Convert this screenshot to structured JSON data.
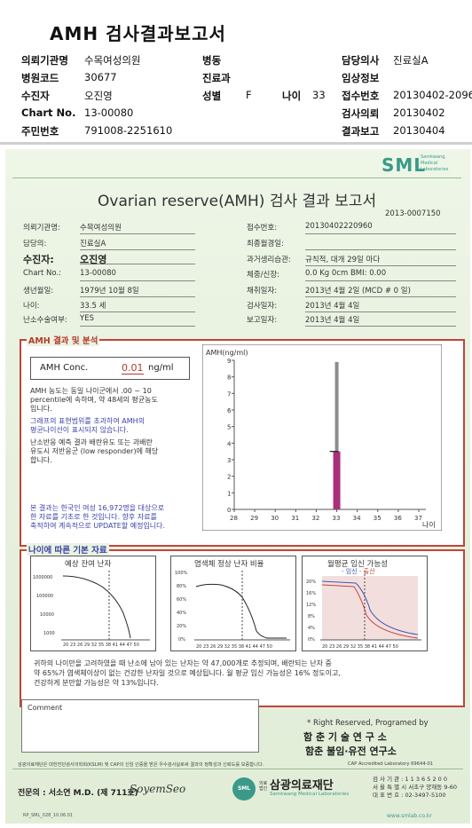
{
  "header": {
    "title": "AMH 검사결과보고서",
    "rows": [
      [
        {
          "k": "의뢰기관명",
          "v": "수목여성의원"
        },
        {
          "k": "병동",
          "v": ""
        },
        {
          "k": "담당의사",
          "v": "진료실A"
        }
      ],
      [
        {
          "k": "병원코드",
          "v": "30677"
        },
        {
          "k": "진료과",
          "v": ""
        },
        {
          "k": "임상정보",
          "v": ""
        }
      ],
      [
        {
          "k": "수진자",
          "v": "오진영"
        },
        {
          "k": "성별",
          "v": "F"
        },
        {
          "k": "나이",
          "v": "33"
        },
        {
          "k": "접수번호",
          "v": "20130402-2096"
        }
      ],
      [
        {
          "k": "Chart No.",
          "v": "13-00080"
        },
        {
          "k": "검사의뢰",
          "v": "20130402"
        }
      ],
      [
        {
          "k": "주민번호",
          "v": "791008-2251610"
        },
        {
          "k": "결과보고",
          "v": "20130404"
        }
      ]
    ]
  },
  "report": {
    "logo": "SML",
    "logo_sub": [
      "Samkwang",
      "Medical",
      "Laboratories"
    ],
    "title": "Ovarian reserve(AMH) 검사 결과 보고서",
    "doc_no": "2013-0007150",
    "left_fields": [
      {
        "k": "의뢰기관명:",
        "v": "수목여성의원"
      },
      {
        "k": "담당의:",
        "v": "진료실A"
      },
      {
        "k": "수진자:",
        "v": "오진영"
      },
      {
        "k": "Chart No.:",
        "v": "13-00080"
      },
      {
        "k": "생년월일:",
        "v": "1979년 10월 8일"
      },
      {
        "k": "나이:",
        "v": "33.5 세"
      },
      {
        "k": "난소수술여부:",
        "v": "YES"
      }
    ],
    "right_fields": [
      {
        "k": "접수번호:",
        "v": "20130402220960"
      },
      {
        "k": "최종월경일:",
        "v": ""
      },
      {
        "k": "과거생리습관:",
        "v": "규칙적, 대개  29일 마다"
      },
      {
        "k": "체중/신장:",
        "v": "0.0 Kg      0cm   BMI:  0.00"
      },
      {
        "k": "채취일자:",
        "v": "2013년 4월 2일   (MCD # 0 일)"
      },
      {
        "k": "검사일자:",
        "v": "2013년 4월 4일"
      },
      {
        "k": "보고일자:",
        "v": "2013년 4월 4일"
      }
    ],
    "amh_section": {
      "heading": "AMH 결과 및 분석",
      "conc_label": "AMH Conc.",
      "conc_value": "0.01",
      "conc_unit": "ng/ml",
      "note1": [
        "AMH 농도는 동일 나이군에서  .00 ~ 10",
        "percentile에 속하며, 약  48세의 평균농도",
        "입니다."
      ],
      "note2": [
        "그래프의 표현범위를 초과하여 AMH의",
        "평균나이선이 표시되지 않습니다."
      ],
      "note3": [
        "난소반응 예측 결과 배란유도 또는 과배란",
        "유도시 저반응군 (low responder)에 해당",
        "합니다."
      ],
      "note4": [
        "본 결과는 한국인 여성 16,972명을 대상으로",
        "한 자료를 기초로 한 것입니다. 향후 자료를",
        "축적하여 계속적으로 UPDATE할 예정입니다."
      ]
    },
    "chart_data": {
      "type": "bar",
      "ylabel": "AMH(ng/ml)",
      "xlabel": "나이",
      "categories": [
        "28",
        "29",
        "30",
        "31",
        "32",
        "33",
        "34",
        "35",
        "36",
        "37"
      ],
      "ylim": [
        0,
        9
      ],
      "yticks": [
        "0",
        "1",
        "2",
        "3",
        "4",
        "5",
        "6",
        "7",
        "8",
        "9"
      ],
      "series": [
        {
          "values": [
            null,
            null,
            null,
            null,
            null,
            8.9,
            null,
            null,
            null,
            null
          ],
          "color": "#8c8c8c"
        },
        {
          "values": [
            null,
            null,
            null,
            null,
            null,
            3.5,
            null,
            null,
            null,
            null
          ],
          "color": "#a8307a"
        }
      ],
      "marker_value": 3.5
    },
    "age_section": {
      "heading": "나이에 따른 기본 자료",
      "mini1": {
        "title": "예상 잔여 난자",
        "yticks": [
          "1000000",
          "100000",
          "10000",
          "1000"
        ],
        "xlabels": "20 23 26 29 32 35 38 41 44 47 50"
      },
      "mini2": {
        "title": "염색체 정상 난자 비율",
        "yticks": [
          "100%",
          "80%",
          "60%",
          "40%",
          "20%",
          "0%"
        ],
        "xlabels": "20 23 26 29 32 35 38 41 44 47 50"
      },
      "mini3": {
        "title": "월평균 임신 가능성",
        "legend_a": "임신",
        "legend_b": "출산",
        "yticks": [
          "20%",
          "16%",
          "12%",
          "8%",
          "4%",
          "0%"
        ],
        "xlabels": "20 23 26 29 32 35 38 41 44 47 50"
      },
      "summary": [
        "귀하의 나이만을 고려하였을 때 난소에 남아 있는 난자는 약     47,000개로 추정되며, 배란되는 난자 중",
        "약  65%가 염색체이상이 없는 건강한 난자일 것으로 예상됩니다. 월 평균 임신 가능성은  16% 정도이고,",
        "건강하게 분만할 가능성은 약  13%입니다."
      ]
    },
    "comment_label": "Comment",
    "rights": "* Right Reserved, Programed by",
    "org1": "함 춘 기 술 연 구 소",
    "org2": "함춘 불임·유전 연구소",
    "footnote": "삼광의료재단은 대한진단검사의학회(KSLM) 및 CAP의 신임 인증을 받은 우수검사실로써 결과의 정확성과 신뢰도를 보증합니다.",
    "cap": "CAP  Accredited  Laboratory   69644-01",
    "specialist": "전문의 : 서소연 M.D. (제 711호)",
    "signature": "SoyemSeo",
    "foundation_prefix": "의료\n법인",
    "foundation": "삼광의료재단",
    "foundation_en": "Samkwang Medical Laboratories",
    "contact": [
      "검 사 기 관 : 1 1 3 6 5 2 0 0",
      "서 울 특 별 시  서초구  양재동 9-60",
      "대 표 번 호 : 02-3497-5100"
    ],
    "form_no": "RP_SML_028_10.06.01",
    "url": "www.smlab.co.kr"
  },
  "colors": {
    "frame": "#c0453a",
    "bar_gray": "#8c8c8c",
    "bar_mag": "#a8307a",
    "paper": "#e6f0dd",
    "logo": "#3a9a8a"
  }
}
